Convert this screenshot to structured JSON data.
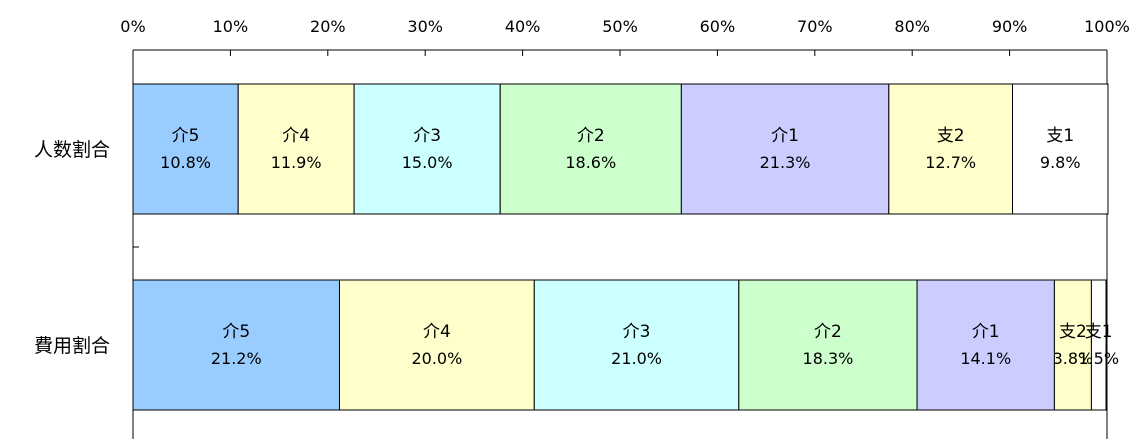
{
  "chart_data": {
    "type": "bar",
    "orientation": "horizontal",
    "stacked": "percent",
    "title": "",
    "xlabel": "",
    "ylabel": "",
    "xlim": [
      0,
      100
    ],
    "x_ticks": [
      "0%",
      "10%",
      "20%",
      "30%",
      "40%",
      "50%",
      "60%",
      "70%",
      "80%",
      "90%",
      "100%"
    ],
    "categories": [
      "人数割合",
      "費用割合"
    ],
    "series": [
      {
        "name": "介5",
        "color": "#99ccff",
        "values": [
          10.8,
          21.2
        ],
        "labels": [
          "10.8%",
          "21.2%"
        ]
      },
      {
        "name": "介4",
        "color": "#ffffcc",
        "values": [
          11.9,
          20.0
        ],
        "labels": [
          "11.9%",
          "20.0%"
        ]
      },
      {
        "name": "介3",
        "color": "#ccffff",
        "values": [
          15.0,
          21.0
        ],
        "labels": [
          "15.0%",
          "21.0%"
        ]
      },
      {
        "name": "介2",
        "color": "#ccffcc",
        "values": [
          18.6,
          18.3
        ],
        "labels": [
          "18.6%",
          "18.3%"
        ]
      },
      {
        "name": "介1",
        "color": "#ccccff",
        "values": [
          21.3,
          14.1
        ],
        "labels": [
          "21.3%",
          "14.1%"
        ]
      },
      {
        "name": "支2",
        "color": "#ffffcc",
        "values": [
          12.7,
          3.8
        ],
        "labels": [
          "12.7%",
          "3.8%"
        ]
      },
      {
        "name": "支1",
        "color": "#ffffff",
        "values": [
          9.8,
          1.5
        ],
        "labels": [
          "9.8%",
          "1.5%"
        ]
      }
    ],
    "grid": false,
    "legend": "none"
  }
}
